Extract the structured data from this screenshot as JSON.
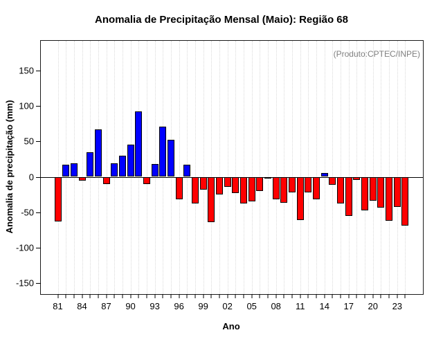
{
  "page": {
    "title": "Anomalia de Precipitação Mensal (Maio): Região 68",
    "annotation": "(Produto:CPTEC/INPE)",
    "xlabel": "Ano",
    "ylabel": "Anomalia de precipitação (mm)"
  },
  "chart_data": {
    "type": "bar",
    "title": "Anomalia de Precipitação Mensal (Maio): Região 68",
    "xlabel": "Ano",
    "ylabel": "Anomalia de precipitação (mm)",
    "annotation": "(Produto:CPTEC/INPE)",
    "x": [
      1981,
      1982,
      1983,
      1984,
      1985,
      1986,
      1987,
      1988,
      1989,
      1990,
      1991,
      1992,
      1993,
      1994,
      1995,
      1996,
      1997,
      1998,
      1999,
      2000,
      2001,
      2002,
      2003,
      2004,
      2005,
      2006,
      2007,
      2008,
      2009,
      2010,
      2011,
      2012,
      2013,
      2014,
      2015,
      2016,
      2017,
      2018,
      2019,
      2020,
      2021,
      2022,
      2023,
      2024
    ],
    "values": [
      -63,
      17,
      19,
      -5,
      35,
      67,
      -10,
      19,
      30,
      45,
      92,
      -10,
      18,
      71,
      52,
      -32,
      17,
      -38,
      -18,
      -64,
      -25,
      -14,
      -23,
      -38,
      -35,
      -20,
      -1,
      -32,
      -37,
      -22,
      -61,
      -22,
      -32,
      5,
      -11,
      -38,
      -55,
      -4,
      -47,
      -34,
      -43,
      -62,
      -42,
      -69
    ],
    "x_tick_labels": [
      "81",
      "84",
      "87",
      "90",
      "93",
      "96",
      "99",
      "02",
      "05",
      "08",
      "11",
      "14",
      "17",
      "20",
      "23"
    ],
    "x_tick_label_step": 3,
    "yticks": [
      -150,
      -100,
      -50,
      0,
      50,
      100,
      150
    ],
    "ylim": [
      -165,
      192
    ],
    "grid": "vertical-dotted-per-year",
    "legend": null,
    "colors": {
      "positive": "#0000FF",
      "negative": "#FF0000",
      "bar_border": "#000000",
      "grid": "#D9D9D9",
      "axis": "#000000",
      "annotation_text": "#808080"
    }
  }
}
